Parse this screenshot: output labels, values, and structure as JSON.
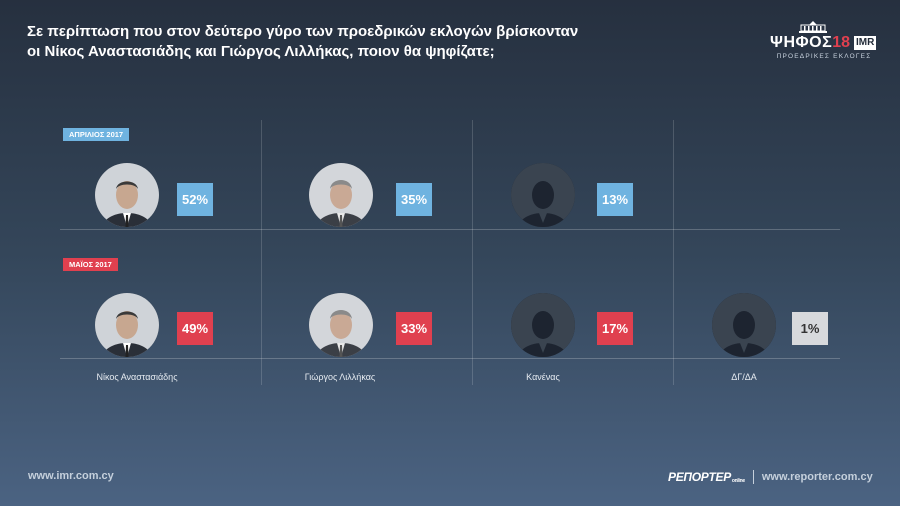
{
  "header": {
    "title_line1": "Σε περίπτωση που στον δεύτερο γύρο των προεδρικών εκλογών βρίσκονταν",
    "title_line2": "οι Νίκος Αναστασιάδης και Γιώργος Λιλλήκας, ποιον θα ψηφίζατε;"
  },
  "logo": {
    "text": "ΨΗΦΟΣ",
    "number": "18",
    "imr": "IMR",
    "subtitle": "ΠΡΟΕΔΡΙΚΕΣ ΕΚΛΟΓΕΣ"
  },
  "chart_data": {
    "type": "table",
    "categories": [
      "Νίκος Αναστασιάδης",
      "Γιώργος Λιλλήκας",
      "Κανένας",
      "ΔΓ/ΔΑ"
    ],
    "series": [
      {
        "name": "ΑΠΡΙΛΙΟΣ 2017",
        "values": [
          52,
          35,
          13,
          null
        ],
        "labels": [
          "52%",
          "35%",
          "13%",
          ""
        ],
        "color": "#6fb3e0"
      },
      {
        "name": "ΜΑΪΟΣ 2017",
        "values": [
          49,
          33,
          17,
          1
        ],
        "labels": [
          "49%",
          "33%",
          "17%",
          "1%"
        ],
        "color": "#e0404f"
      }
    ]
  },
  "colors": {
    "april": "#6fb3e0",
    "may": "#e0404f",
    "no_answer": "#d7d9dc"
  },
  "footer": {
    "left_url": "www.imr.com.cy",
    "brand": "ΡΕΠΟΡΤΕΡ",
    "brand_sub": "online",
    "right_url": "www.reporter.com.cy"
  }
}
